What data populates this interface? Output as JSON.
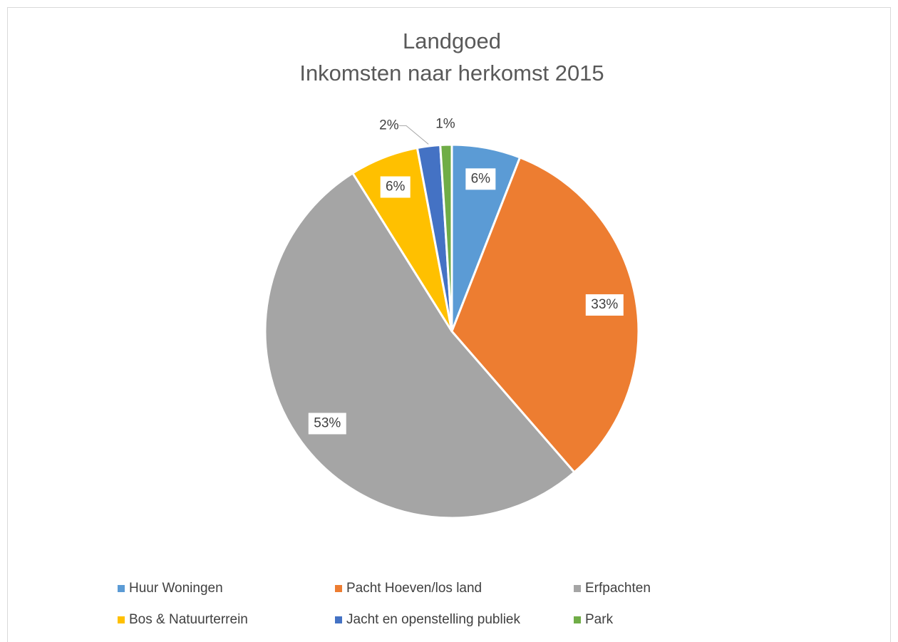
{
  "chart_data": {
    "type": "pie",
    "title": "Landgoed",
    "subtitle": "Inkomsten naar herkomst 2015",
    "categories": [
      "Huur Woningen",
      "Pacht Hoeven/los land",
      "Erfpachten",
      "Bos & Natuurterrein",
      "Jacht en openstelling publiek",
      "Park"
    ],
    "values": [
      6,
      33,
      53,
      6,
      2,
      1
    ],
    "value_labels": [
      "6%",
      "33%",
      "53%",
      "6%",
      "2%",
      "1%"
    ],
    "colors": [
      "#5b9bd5",
      "#ed7d31",
      "#a5a5a5",
      "#ffc000",
      "#4472c4",
      "#70ad47"
    ],
    "legend": "bottom"
  }
}
